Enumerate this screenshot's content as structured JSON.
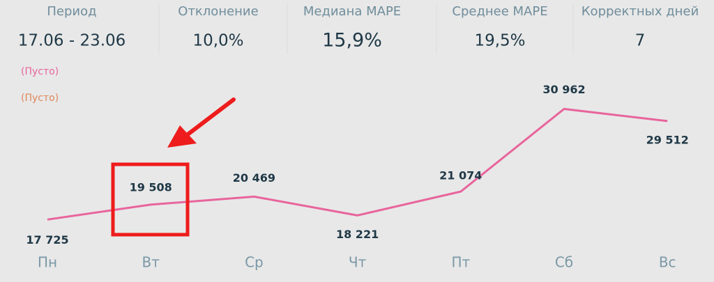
{
  "kpis": [
    {
      "label": "Период",
      "value": "17.06 - 23.06"
    },
    {
      "label": "Отклонение",
      "value": "10,0%"
    },
    {
      "label": "Медиана MAPE",
      "value": "15,9%"
    },
    {
      "label": "Среднее MAPE",
      "value": "19,5%"
    },
    {
      "label": "Корректных дней",
      "value": "7"
    }
  ],
  "chart_data": {
    "type": "line",
    "legend": [
      {
        "name": "(Пусто)",
        "color": "#e8649c"
      },
      {
        "name": "(Пусто)",
        "color": "#e0875a"
      }
    ],
    "categories": [
      "Пн",
      "Вт",
      "Ср",
      "Чт",
      "Пт",
      "Сб",
      "Вс"
    ],
    "series": [
      {
        "color": "#e8649c",
        "values": [
          17725,
          19508,
          20469,
          18221,
          21074,
          30962,
          29512
        ],
        "value_labels": [
          "17 725",
          "19 508",
          "20 469",
          "18 221",
          "21 074",
          "30 962",
          "29 512"
        ]
      }
    ],
    "ylim": [
      16500,
      34000
    ]
  }
}
